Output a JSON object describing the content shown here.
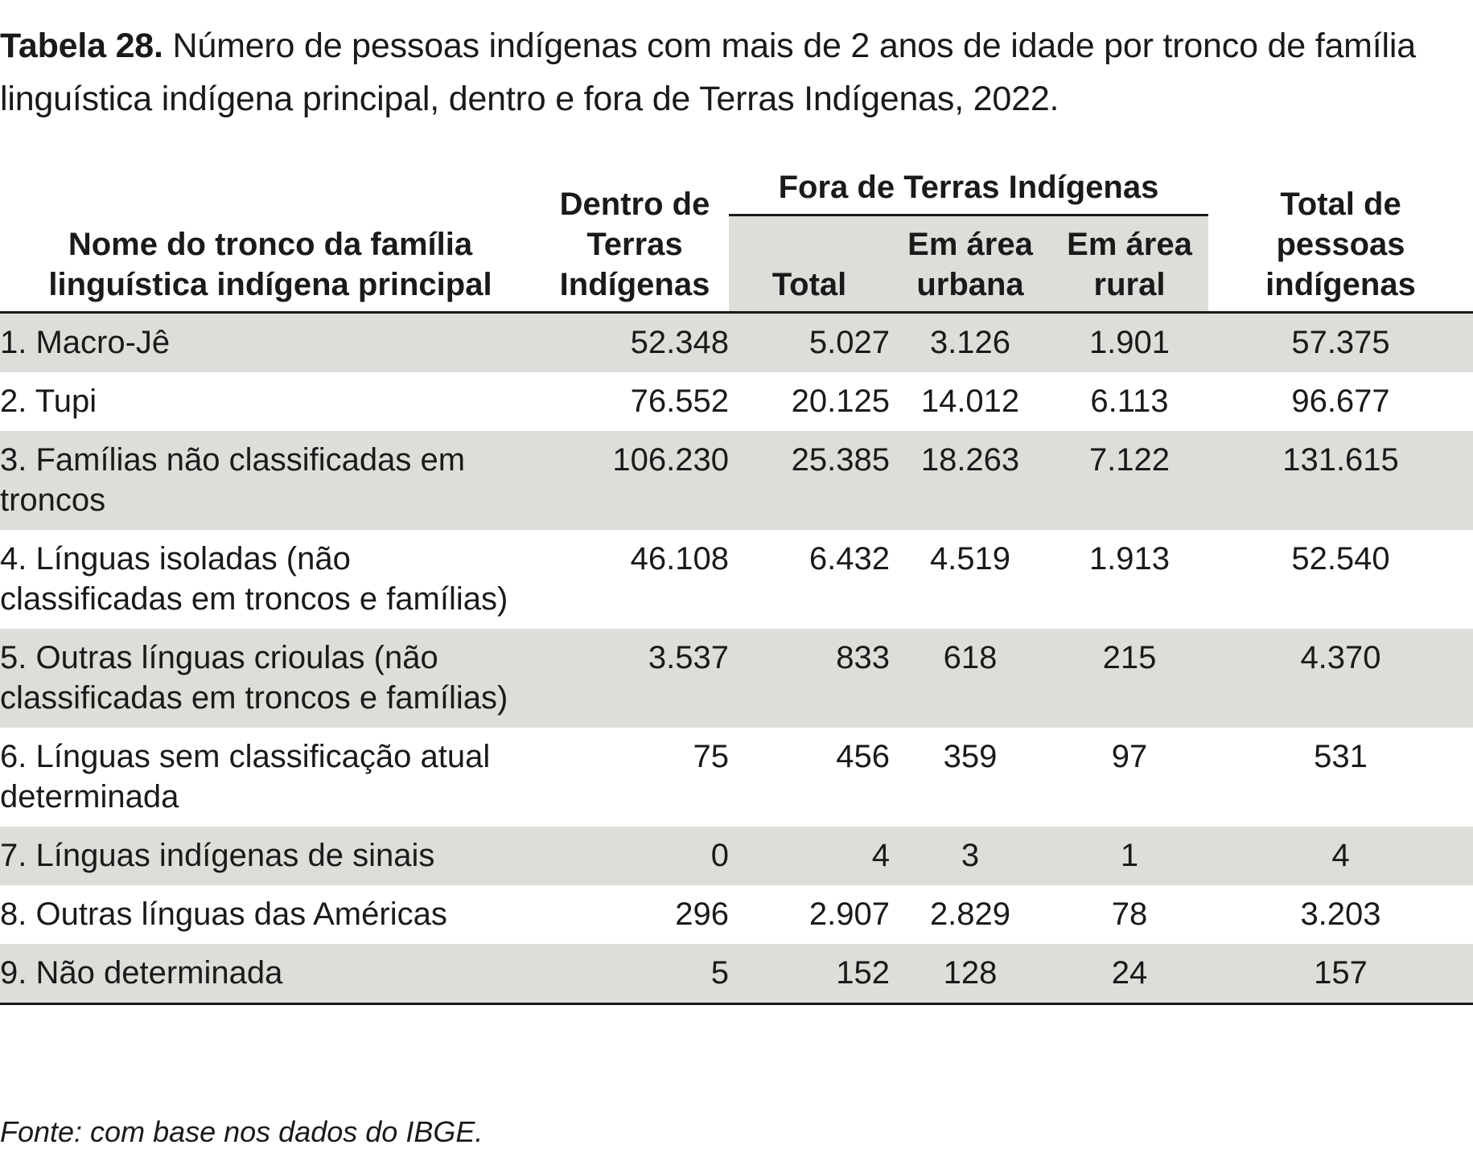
{
  "caption": {
    "label": "Tabela 28.",
    "text": " Número de pessoas indígenas com mais de 2 anos de idade por tronco de família linguística indígena principal, dentro e fora de Terras Indígenas, 2022."
  },
  "table": {
    "headers": {
      "name": "Nome do tronco da família linguística indígena principal",
      "inside": "Dentro de Terras Indígenas",
      "outside_group": "Fora de Terras Indígenas",
      "outside_total": "Total",
      "outside_urban": "Em área urbana",
      "outside_rural": "Em área rural",
      "total": "Total de pessoas indígenas"
    },
    "rows": [
      {
        "name": "1. Macro-Jê",
        "inside": "52.348",
        "out_total": "5.027",
        "urban": "3.126",
        "rural": "1.901",
        "total": "57.375"
      },
      {
        "name": "2. Tupi",
        "inside": "76.552",
        "out_total": "20.125",
        "urban": "14.012",
        "rural": "6.113",
        "total": "96.677"
      },
      {
        "name": "3. Famílias não classificadas em troncos",
        "inside": "106.230",
        "out_total": "25.385",
        "urban": "18.263",
        "rural": "7.122",
        "total": "131.615"
      },
      {
        "name": "4. Línguas isoladas (não classificadas em troncos e famílias)",
        "inside": "46.108",
        "out_total": "6.432",
        "urban": "4.519",
        "rural": "1.913",
        "total": "52.540"
      },
      {
        "name": "5. Outras línguas crioulas (não classificadas em troncos e famílias)",
        "inside": "3.537",
        "out_total": "833",
        "urban": "618",
        "rural": "215",
        "total": "4.370"
      },
      {
        "name": "6. Línguas sem classificação atual determinada",
        "inside": "75",
        "out_total": "456",
        "urban": "359",
        "rural": "97",
        "total": "531"
      },
      {
        "name": "7. Línguas indígenas de sinais",
        "inside": "0",
        "out_total": "4",
        "urban": "3",
        "rural": "1",
        "total": "4"
      },
      {
        "name": "8. Outras línguas das Américas",
        "inside": "296",
        "out_total": "2.907",
        "urban": "2.829",
        "rural": "78",
        "total": "3.203"
      },
      {
        "name": "9. Não determinada",
        "inside": "5",
        "out_total": "152",
        "urban": "128",
        "rural": "24",
        "total": "157"
      }
    ]
  },
  "source": "Fonte: com base nos dados do IBGE.",
  "colors": {
    "shade": "#deddd9",
    "text": "#1a1a1a",
    "rule": "#1a1a1a"
  }
}
